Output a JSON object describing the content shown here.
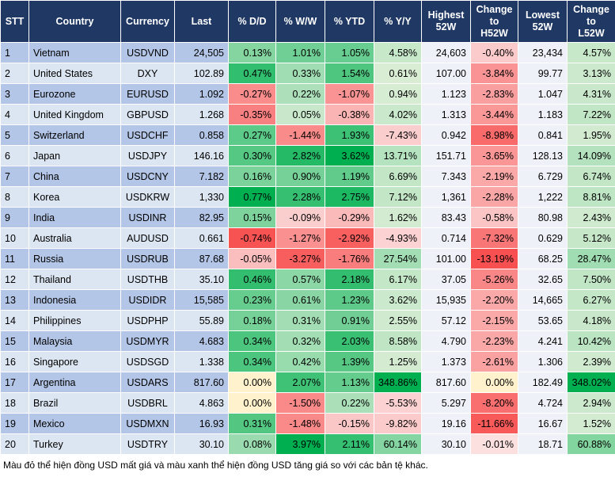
{
  "table": {
    "header": [
      "STT",
      "Country",
      "Currency",
      "Last",
      "% D/D",
      "% W/W",
      "% YTD",
      "% Y/Y",
      "Highest\n52W",
      "Change\nto\nH52W",
      "Lowest\n52W",
      "Change\nto\nL52W"
    ],
    "rows": [
      [
        "1",
        "Vietnam",
        "USDVND",
        "24,505",
        "0.13%",
        "1.01%",
        "1.05%",
        "4.58%",
        "24,603",
        "-0.40%",
        "23,434",
        "4.57%"
      ],
      [
        "2",
        "United States",
        "DXY",
        "102.89",
        "0.47%",
        "0.33%",
        "1.54%",
        "0.61%",
        "107.00",
        "-3.84%",
        "99.77",
        "3.13%"
      ],
      [
        "3",
        "Eurozone",
        "EURUSD",
        "1.092",
        "-0.27%",
        "0.22%",
        "-1.07%",
        "0.94%",
        "1.123",
        "-2.83%",
        "1.047",
        "4.31%"
      ],
      [
        "4",
        "United Kingdom",
        "GBPUSD",
        "1.268",
        "-0.35%",
        "0.05%",
        "-0.38%",
        "4.02%",
        "1.313",
        "-3.44%",
        "1.183",
        "7.22%"
      ],
      [
        "5",
        "Switzerland",
        "USDCHF",
        "0.858",
        "0.27%",
        "-1.44%",
        "1.93%",
        "-7.43%",
        "0.942",
        "-8.98%",
        "0.841",
        "1.95%"
      ],
      [
        "6",
        "Japan",
        "USDJPY",
        "146.16",
        "0.30%",
        "2.82%",
        "3.62%",
        "13.71%",
        "151.71",
        "-3.65%",
        "128.13",
        "14.09%"
      ],
      [
        "7",
        "China",
        "USDCNY",
        "7.182",
        "0.16%",
        "0.90%",
        "1.19%",
        "6.69%",
        "7.343",
        "-2.19%",
        "6.729",
        "6.74%"
      ],
      [
        "8",
        "Korea",
        "USDKRW",
        "1,330",
        "0.77%",
        "2.28%",
        "2.75%",
        "7.12%",
        "1,361",
        "-2.28%",
        "1,222",
        "8.81%"
      ],
      [
        "9",
        "India",
        "USDINR",
        "82.95",
        "0.15%",
        "-0.09%",
        "-0.29%",
        "1.62%",
        "83.43",
        "-0.58%",
        "80.98",
        "2.43%"
      ],
      [
        "10",
        "Australia",
        "AUDUSD",
        "0.661",
        "-0.74%",
        "-1.27%",
        "-2.92%",
        "-4.93%",
        "0.714",
        "-7.32%",
        "0.629",
        "5.12%"
      ],
      [
        "11",
        "Russia",
        "USDRUB",
        "87.68",
        "-0.05%",
        "-3.27%",
        "-1.76%",
        "27.54%",
        "101.00",
        "-13.19%",
        "68.25",
        "28.47%"
      ],
      [
        "12",
        "Thailand",
        "USDTHB",
        "35.10",
        "0.46%",
        "0.57%",
        "2.18%",
        "6.17%",
        "37.05",
        "-5.26%",
        "32.65",
        "7.50%"
      ],
      [
        "13",
        "Indonesia",
        "USDIDR",
        "15,585",
        "0.23%",
        "0.61%",
        "1.23%",
        "3.62%",
        "15,935",
        "-2.20%",
        "14,665",
        "6.27%"
      ],
      [
        "14",
        "Philippines",
        "USDPHP",
        "55.89",
        "0.18%",
        "0.31%",
        "0.91%",
        "2.55%",
        "57.12",
        "-2.15%",
        "53.65",
        "4.18%"
      ],
      [
        "15",
        "Malaysia",
        "USDMYR",
        "4.683",
        "0.34%",
        "0.32%",
        "2.03%",
        "8.58%",
        "4.790",
        "-2.23%",
        "4.241",
        "10.42%"
      ],
      [
        "16",
        "Singapore",
        "USDSGD",
        "1.338",
        "0.34%",
        "0.42%",
        "1.39%",
        "1.25%",
        "1.373",
        "-2.61%",
        "1.306",
        "2.39%"
      ],
      [
        "17",
        "Argentina",
        "USDARS",
        "817.60",
        "0.00%",
        "2.07%",
        "1.13%",
        "348.86%",
        "817.60",
        "0.00%",
        "182.49",
        "348.02%"
      ],
      [
        "18",
        "Brazil",
        "USDBRL",
        "4.863",
        "0.00%",
        "-1.50%",
        "0.22%",
        "-5.53%",
        "5.297",
        "-8.20%",
        "4.724",
        "2.94%"
      ],
      [
        "19",
        "Mexico",
        "USDMXN",
        "16.93",
        "0.31%",
        "-1.48%",
        "-0.15%",
        "-9.82%",
        "19.16",
        "-11.66%",
        "16.67",
        "1.52%"
      ],
      [
        "20",
        "Turkey",
        "USDTRY",
        "30.10",
        "0.08%",
        "3.97%",
        "2.11%",
        "60.14%",
        "30.10",
        "-0.01%",
        "18.71",
        "60.88%"
      ]
    ]
  },
  "footnote": "Màu đỏ thể hiện đồng USD mất giá và màu xanh thể hiện đồng USD tăng giá so với các bản tệ khác."
}
